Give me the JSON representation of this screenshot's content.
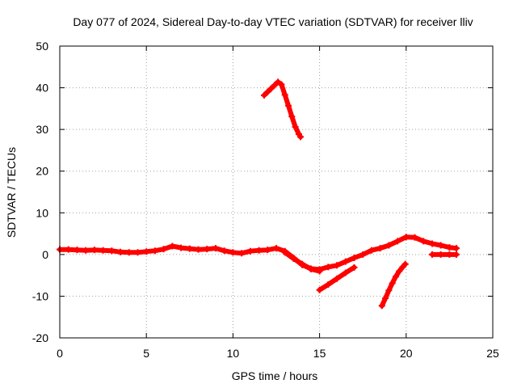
{
  "chart_data": {
    "type": "scatter",
    "title": "Day 077 of 2024, Sidereal Day-to-day VTEC variation (SDTVAR) for receiver lliv",
    "xlabel": "GPS time / hours",
    "ylabel": "SDTVAR / TECUs",
    "xlim": [
      0,
      25
    ],
    "ylim": [
      -20,
      50
    ],
    "xticks": [
      0,
      5,
      10,
      15,
      20,
      25
    ],
    "yticks": [
      -20,
      -10,
      0,
      10,
      20,
      30,
      40,
      50
    ],
    "xtick_labels": [
      "0",
      "5",
      "10",
      "15",
      "20",
      "25"
    ],
    "ytick_labels": [
      "-20",
      "-10",
      "0",
      "10",
      "20",
      "30",
      "40",
      "50"
    ],
    "grid": true,
    "marker_color": "#ff0000",
    "series": [
      {
        "name": "main-trace",
        "x": [
          0,
          0.5,
          1,
          1.5,
          2,
          2.5,
          3,
          3.5,
          4,
          4.5,
          5,
          5.5,
          6,
          6.5,
          7,
          7.5,
          8,
          8.5,
          9,
          9.5,
          10,
          10.5,
          11,
          11.5,
          12,
          12.5,
          13,
          13.5,
          14,
          14.5,
          15,
          15.5,
          16,
          16.5,
          17,
          17.5,
          18,
          18.5,
          19,
          19.5,
          20,
          20.5,
          21,
          21.5,
          22,
          22.5,
          22.9
        ],
        "y": [
          1.2,
          1.2,
          1.1,
          1.0,
          1.1,
          1.0,
          0.9,
          0.6,
          0.5,
          0.5,
          0.7,
          0.9,
          1.3,
          2.0,
          1.6,
          1.4,
          1.2,
          1.3,
          1.5,
          0.9,
          0.5,
          0.3,
          0.8,
          1.0,
          1.1,
          1.5,
          0.8,
          -0.8,
          -2.5,
          -3.4,
          -3.6,
          -3.0,
          -2.6,
          -1.7,
          -0.8,
          0.0,
          1.0,
          1.5,
          2.2,
          3.2,
          4.2,
          4.1,
          3.2,
          2.6,
          2.2,
          1.7,
          1.5
        ]
      },
      {
        "name": "high-arc",
        "x": [
          11.8,
          12.0,
          12.2,
          12.4,
          12.6,
          12.8,
          13.0,
          13.2,
          13.4,
          13.6,
          13.8,
          13.9
        ],
        "y": [
          38.2,
          39.0,
          39.8,
          40.6,
          41.4,
          40.8,
          38.3,
          35.7,
          33.1,
          30.6,
          28.9,
          28.2
        ]
      },
      {
        "name": "lower-branch",
        "x": [
          13.0,
          13.5,
          14.0,
          14.5,
          15.0
        ],
        "y": [
          0.5,
          -1.0,
          -2.3,
          -3.5,
          -4.0
        ]
      },
      {
        "name": "dip-segment",
        "x": [
          15.0,
          15.5,
          16.0,
          16.5,
          17.0
        ],
        "y": [
          -8.5,
          -7.2,
          -5.8,
          -4.4,
          -3.1
        ]
      },
      {
        "name": "steep-rise",
        "x": [
          18.6,
          18.8,
          19.0,
          19.2,
          19.4,
          19.6,
          19.8,
          19.95
        ],
        "y": [
          -12.3,
          -10.5,
          -8.6,
          -6.9,
          -5.3,
          -4.0,
          -3.0,
          -2.3
        ]
      },
      {
        "name": "tail-segment",
        "x": [
          21.5,
          22.0,
          22.5,
          22.9
        ],
        "y": [
          0.0,
          0.0,
          0.0,
          0.0
        ]
      }
    ]
  }
}
